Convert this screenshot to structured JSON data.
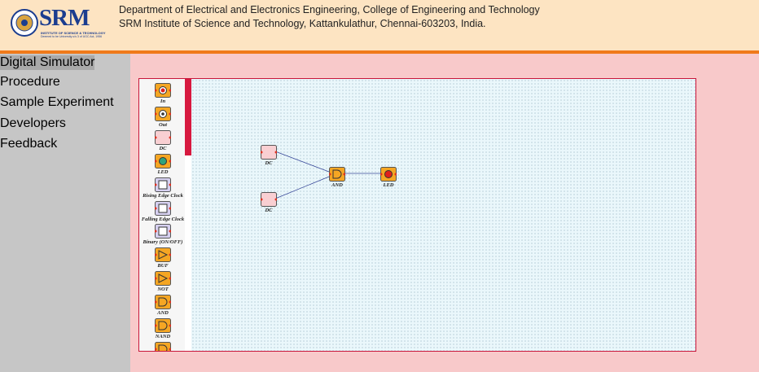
{
  "header": {
    "logo": "SRM",
    "logo_sub": "INSTITUTE OF SCIENCE & TECHNOLOGY",
    "logo_tag": "Deemed to be University u/s 3 of UGC Act, 1956",
    "line1": "Department of Electrical and Electronics Engineering, College of Engineering and Technology",
    "line2": "SRM Institute of Science and Technology, Kattankulathur, Chennai-603203, India."
  },
  "menu": [
    "Digital Simulator",
    "Procedure",
    "Sample Experiment",
    "Developers",
    "Feedback"
  ],
  "palette": [
    "In",
    "Out",
    "DC",
    "LED",
    "Rising Edge Clock",
    "Falling Edge Clock",
    "Binary (ON/OFF)",
    "BUF",
    "NOT",
    "AND",
    "NAND"
  ],
  "canvas": {
    "components": [
      {
        "label": "DC"
      },
      {
        "label": "DC"
      },
      {
        "label": "AND"
      },
      {
        "label": "LED"
      }
    ]
  }
}
